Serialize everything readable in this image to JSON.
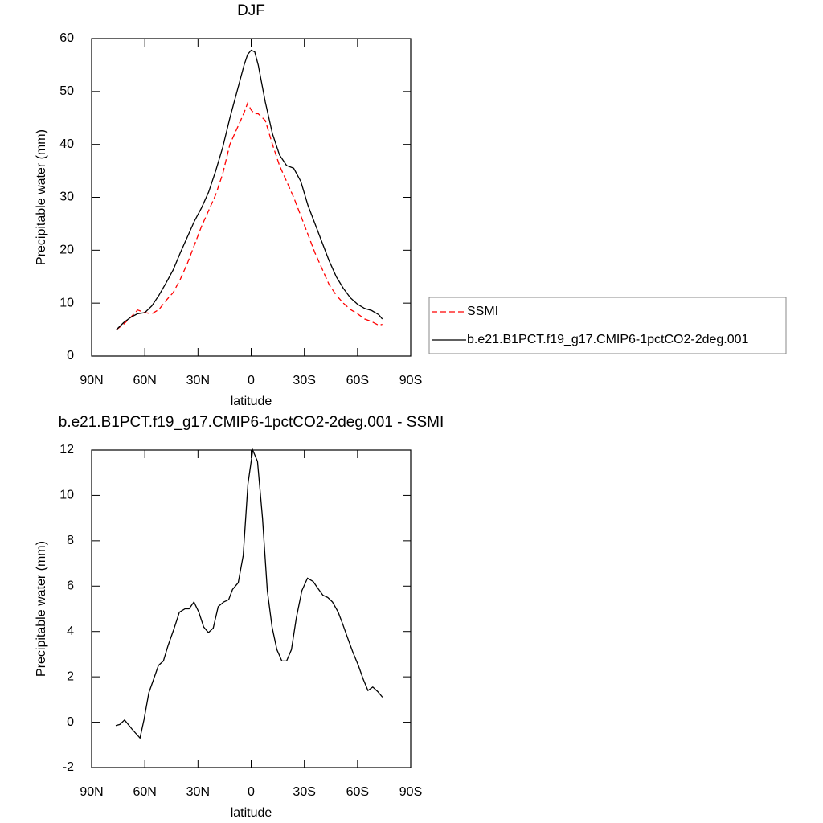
{
  "chart_data": [
    {
      "type": "line",
      "title": "DJF",
      "xlabel": "latitude",
      "ylabel": "Precipitable water (mm)",
      "x": [
        76,
        72,
        68,
        64,
        60,
        56,
        52,
        48,
        44,
        40,
        36,
        32,
        28,
        24,
        20,
        16,
        12,
        8,
        4,
        2,
        0,
        -2,
        -4,
        -8,
        -12,
        -16,
        -20,
        -24,
        -28,
        -32,
        -36,
        -40,
        -44,
        -48,
        -52,
        -56,
        -60,
        -64,
        -68,
        -72,
        -74
      ],
      "series": [
        {
          "name": "SSMI",
          "color": "#ff0000",
          "line_style": "dashed",
          "values": [
            5,
            6,
            7.3,
            8.7,
            8.2,
            8,
            8.8,
            10.5,
            12,
            14.5,
            17.5,
            21,
            24.5,
            27.5,
            30.5,
            34.5,
            40,
            43,
            46,
            47.8,
            46.5,
            45.8,
            45.8,
            44.5,
            40,
            36,
            33,
            30,
            26.5,
            23,
            19.5,
            16.5,
            13.5,
            11.5,
            10,
            8.8,
            8,
            7,
            6.5,
            5.8,
            6
          ]
        },
        {
          "name": "b.e21.B1PCT.f19_g17.CMIP6-1pctCO2-2deg.001",
          "color": "#000000",
          "line_style": "solid",
          "values": [
            5,
            6.3,
            7.3,
            8,
            8.2,
            9.5,
            11.5,
            13.8,
            16.3,
            19.5,
            22.5,
            25.5,
            28,
            31,
            35,
            39.5,
            45,
            50,
            55,
            57,
            57.8,
            57.5,
            55,
            48,
            42,
            38,
            36,
            35.5,
            33,
            28.5,
            25,
            21.5,
            18,
            15,
            12.8,
            11,
            9.8,
            9,
            8.6,
            7.8,
            7
          ]
        }
      ],
      "xlim": [
        90,
        -90
      ],
      "xticks": [
        {
          "value": 90,
          "label": "90N"
        },
        {
          "value": 60,
          "label": "60N"
        },
        {
          "value": 30,
          "label": "30N"
        },
        0,
        {
          "value": -30,
          "label": "30S"
        },
        {
          "value": -60,
          "label": "60S"
        },
        {
          "value": -90,
          "label": "90S"
        }
      ],
      "ylim": [
        0,
        60
      ],
      "yticks": [
        0,
        10,
        20,
        30,
        40,
        50,
        60
      ]
    },
    {
      "type": "line",
      "title": "b.e21.B1PCT.f19_g17.CMIP6-1pctCO2-2deg.001 - SSMI",
      "xlabel": "latitude",
      "ylabel": "Precipitable water (mm)",
      "x": [
        76.4,
        74.1,
        71.4,
        67.3,
        62.7,
        60.5,
        57.7,
        55,
        52.3,
        49.5,
        46.8,
        43.6,
        40.5,
        37.3,
        35,
        32.3,
        29.5,
        26.8,
        24.1,
        21.4,
        18.6,
        15.5,
        12.7,
        10.5,
        7.3,
        4.5,
        1.8,
        -0.9,
        -3.6,
        -6.4,
        -9.1,
        -11.8,
        -14.5,
        -17.3,
        -20,
        -22.7,
        -25.5,
        -28.6,
        -31.8,
        -35,
        -37.7,
        -40.5,
        -43.2,
        -45.9,
        -49.1,
        -51.8,
        -54.5,
        -57.3,
        -60.5,
        -63.2,
        -65.9,
        -68.6,
        -71.4,
        -74.1
      ],
      "color": "#000000",
      "values": [
        -0.15,
        -0.1,
        0.1,
        -0.3,
        -0.7,
        0.1,
        1.3,
        1.9,
        2.5,
        2.7,
        3.4,
        4.1,
        4.85,
        5,
        5,
        5.3,
        4.85,
        4.2,
        3.95,
        4.15,
        5.1,
        5.3,
        5.4,
        5.85,
        6.15,
        7.35,
        10.5,
        12,
        11.5,
        9,
        5.8,
        4.2,
        3.2,
        2.7,
        2.7,
        3.2,
        4.6,
        5.8,
        6.35,
        6.2,
        5.9,
        5.6,
        5.5,
        5.3,
        4.85,
        4.3,
        3.7,
        3.1,
        2.5,
        1.9,
        1.4,
        1.55,
        1.35,
        1.1
      ],
      "xlim": [
        90,
        -90
      ],
      "xticks": [
        {
          "value": 90,
          "label": "90N"
        },
        {
          "value": 60,
          "label": "60N"
        },
        {
          "value": 30,
          "label": "30N"
        },
        0,
        {
          "value": -30,
          "label": "30S"
        },
        {
          "value": -60,
          "label": "60S"
        },
        {
          "value": -90,
          "label": "90S"
        }
      ],
      "ylim": [
        -2,
        12
      ],
      "yticks": [
        -2,
        0,
        2,
        4,
        6,
        8,
        10,
        12
      ]
    }
  ]
}
